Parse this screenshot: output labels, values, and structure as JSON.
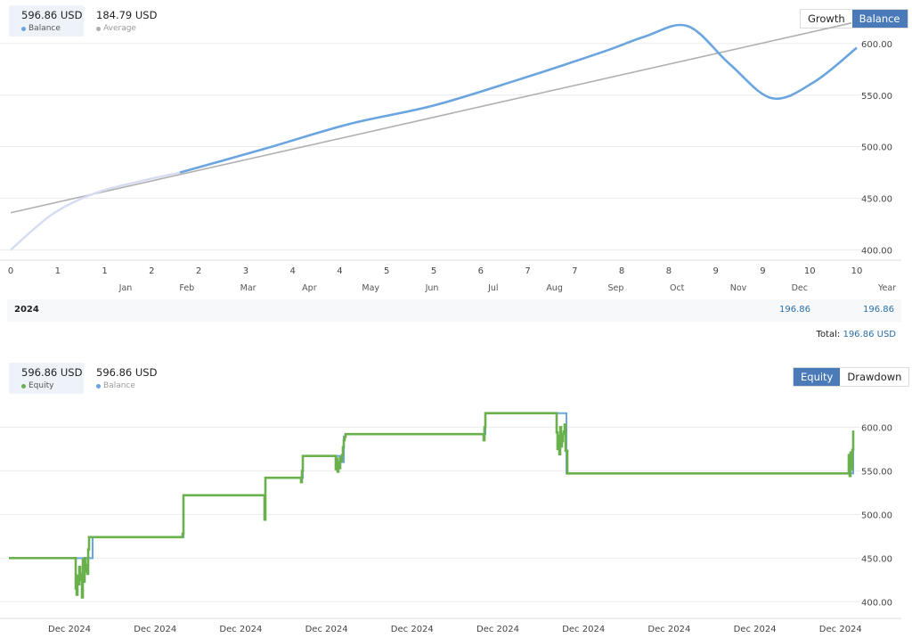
{
  "top_panel": {
    "legend": [
      {
        "value": "596.86 USD",
        "label": "Balance",
        "color": "#6aa5e0",
        "active": true
      },
      {
        "value": "184.79 USD",
        "label": "Average",
        "color": "#b0b0b0",
        "active": false
      }
    ],
    "buttons": [
      {
        "label": "Growth",
        "active": false
      },
      {
        "label": "Balance",
        "active": true
      }
    ],
    "summary": {
      "year": "2024",
      "value_1": "196.86",
      "value_2": "196.86"
    },
    "total_label": "Total:",
    "total_value": "196.86 USD"
  },
  "bottom_panel": {
    "legend": [
      {
        "value": "596.86 USD",
        "label": "Equity",
        "color": "#6ab04c",
        "active": true
      },
      {
        "value": "596.86 USD",
        "label": "Balance",
        "color": "#6aa5e0",
        "active": false
      }
    ],
    "buttons": [
      {
        "label": "Equity",
        "active": true
      },
      {
        "label": "Drawdown",
        "active": false
      }
    ]
  },
  "colors": {
    "balance": "#6aa5e0",
    "average": "#b0b0b0",
    "equity": "#6ab04c",
    "grid": "#ececec",
    "accent": "#4a7ab8"
  },
  "chart_data": [
    {
      "type": "line",
      "x_ticks": [
        "0",
        "1",
        "1",
        "2",
        "2",
        "3",
        "4",
        "4",
        "5",
        "5",
        "6",
        "7",
        "7",
        "8",
        "8",
        "9",
        "9",
        "10",
        "10"
      ],
      "month_labels": [
        "Jan",
        "Feb",
        "Mar",
        "Apr",
        "May",
        "Jun",
        "Jul",
        "Aug",
        "Sep",
        "Oct",
        "Nov",
        "Dec"
      ],
      "year_label": "Year",
      "xlim": [
        0,
        10
      ],
      "ylim": [
        390,
        625
      ],
      "y_ticks": [
        "400.00",
        "450.00",
        "500.00",
        "550.00",
        "600.00"
      ],
      "grid": true,
      "series": [
        {
          "name": "Balance",
          "x": [
            0,
            0.5,
            1,
            1.5,
            2,
            3,
            4,
            5,
            6,
            7,
            7.5,
            8,
            8.5,
            9,
            9.5,
            10
          ],
          "y": [
            400,
            435,
            455,
            466,
            475,
            498,
            522,
            540,
            565,
            592,
            607,
            617,
            580,
            547,
            563,
            596
          ]
        },
        {
          "name": "Average",
          "x": [
            0,
            10
          ],
          "y": [
            436,
            620
          ]
        }
      ]
    },
    {
      "type": "line",
      "x_tick_labels": [
        "Dec 2024",
        "Dec 2024",
        "Dec 2024",
        "Dec 2024",
        "Dec 2024",
        "Dec 2024",
        "Dec 2024",
        "Dec 2024",
        "Dec 2024",
        "Dec 2024"
      ],
      "ylim": [
        385,
        630
      ],
      "y_ticks": [
        "400.00",
        "450.00",
        "500.00",
        "550.00",
        "600.00"
      ],
      "grid": true,
      "series": [
        {
          "name": "Equity",
          "x": [
            0,
            74,
            75,
            76,
            77,
            78,
            79,
            80,
            81,
            82,
            83,
            84,
            85,
            86,
            87,
            88,
            89,
            90,
            91,
            92,
            93,
            94,
            194,
            195,
            196,
            286,
            287,
            288,
            327,
            328,
            329,
            330,
            366,
            367,
            368,
            369,
            370,
            371,
            372,
            373,
            374,
            375,
            376,
            377,
            378,
            532,
            533,
            534,
            535,
            614,
            615,
            616,
            617,
            618,
            619,
            620,
            621,
            622,
            623,
            624,
            625,
            627,
            942,
            943,
            944,
            945,
            946,
            947,
            948
          ],
          "y": [
            450,
            450,
            415,
            408,
            430,
            420,
            440,
            425,
            432,
            405,
            448,
            423,
            450,
            435,
            442,
            432,
            460,
            474,
            474,
            474,
            474,
            474,
            474,
            478,
            522,
            522,
            494,
            542,
            542,
            537,
            550,
            567,
            567,
            552,
            564,
            549,
            560,
            553,
            565,
            561,
            568,
            577,
            585,
            589,
            592,
            592,
            585,
            600,
            616,
            616,
            594,
            575,
            590,
            569,
            600,
            578,
            584,
            592,
            595,
            603,
            573,
            547,
            547,
            568,
            544,
            571,
            552,
            574,
            596
          ]
        },
        {
          "name": "Balance",
          "x": [
            0,
            90,
            94,
            194,
            196,
            286,
            288,
            327,
            330,
            366,
            372,
            376,
            378,
            532,
            535,
            620,
            626,
            944,
            948
          ],
          "y": [
            450,
            450,
            474,
            474,
            522,
            522,
            542,
            542,
            567,
            567,
            560,
            589,
            592,
            592,
            616,
            616,
            547,
            547,
            596
          ]
        }
      ]
    }
  ]
}
